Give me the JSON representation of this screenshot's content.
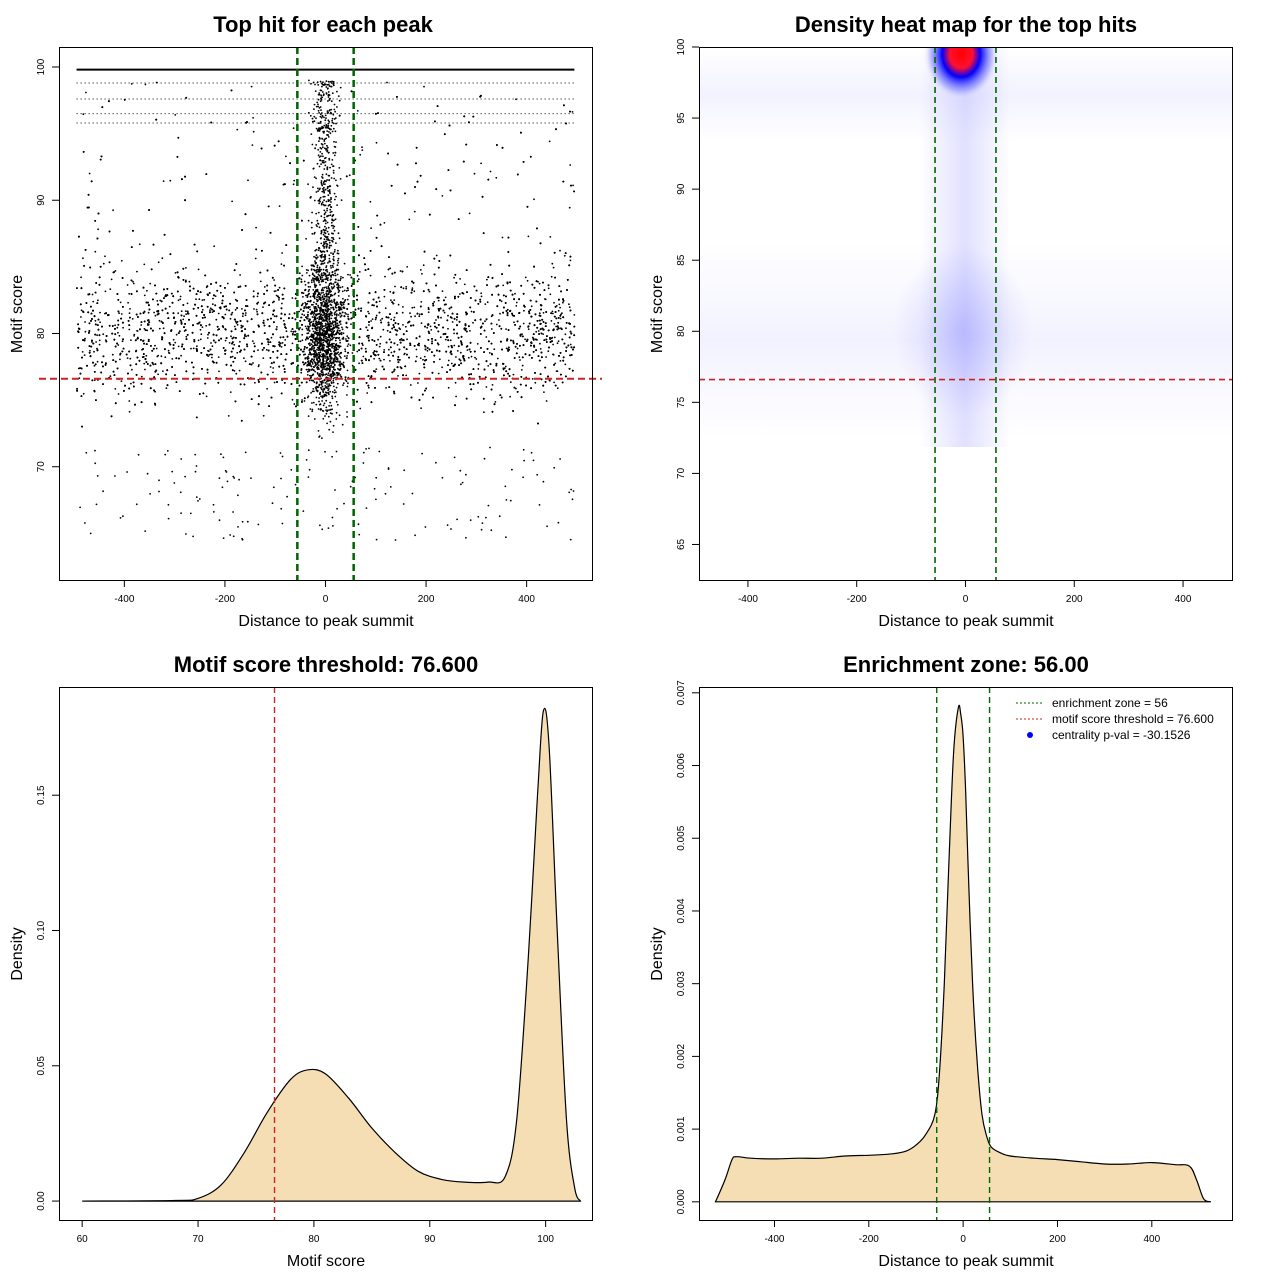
{
  "colors": {
    "axis": "#000000",
    "enrichment_line": "#006400",
    "threshold_line": "#cc2222",
    "density_fill": "#f5deb3",
    "heat_low": "#ffffff",
    "heat_mid": "#0000ff",
    "heat_high": "#ff0000",
    "pval_dot": "#0000ff"
  },
  "chart_data": [
    {
      "type": "scatter",
      "title": "Top hit for each peak",
      "xlabel": "Distance to peak summit",
      "ylabel": "Motif score",
      "xlim": [
        -530,
        530
      ],
      "ylim": [
        61.5,
        101.5
      ],
      "xticks": [
        -400,
        -200,
        0,
        200,
        400
      ],
      "yticks": [
        70,
        80,
        90,
        100
      ],
      "point_range_x": [
        -495,
        495
      ],
      "point_mode_y": 80,
      "central_peak_x": 0,
      "max_score_row_y": 99.8,
      "vlines": [
        -56,
        56
      ],
      "hline": 76.6
    },
    {
      "type": "heatmap",
      "title": "Density heat map for the top hits",
      "xlabel": "Distance to peak summit",
      "ylabel": "Motif score",
      "xlim": [
        -490,
        490
      ],
      "ylim": [
        62.5,
        100
      ],
      "xticks": [
        -400,
        -200,
        0,
        200,
        400
      ],
      "yticks": [
        65,
        70,
        75,
        80,
        85,
        90,
        95,
        100
      ],
      "hotspot": {
        "x": -8,
        "y": 99.5
      },
      "secondary_hotspot": {
        "x": -5,
        "y": 80
      },
      "vlines": [
        -56,
        56
      ],
      "hline": 76.6
    },
    {
      "type": "area",
      "title": "Motif score threshold: 76.600",
      "xlabel": "Motif score",
      "ylabel": "Density",
      "xlim": [
        58,
        104
      ],
      "ylim": [
        -0.007,
        0.19
      ],
      "xticks": [
        60,
        70,
        80,
        90,
        100
      ],
      "yticks": [
        0.0,
        0.05,
        0.1,
        0.15
      ],
      "ytick_labels": [
        "0.00",
        "0.05",
        "0.10",
        "0.15"
      ],
      "x": [
        60,
        68,
        70,
        72,
        74,
        76,
        78,
        79.5,
        81,
        83,
        85,
        87,
        89,
        91,
        93,
        95,
        96.5,
        97.5,
        98.5,
        99.3,
        99.8,
        100.3,
        101,
        101.8,
        102.5,
        103
      ],
      "y": [
        0.0,
        0.0002,
        0.001,
        0.006,
        0.018,
        0.033,
        0.045,
        0.0485,
        0.047,
        0.038,
        0.027,
        0.018,
        0.011,
        0.008,
        0.007,
        0.007,
        0.009,
        0.03,
        0.09,
        0.15,
        0.181,
        0.168,
        0.1,
        0.03,
        0.005,
        0.0
      ],
      "vline": 76.6
    },
    {
      "type": "area",
      "title": "Enrichment zone: 56.00",
      "xlabel": "Distance to peak summit",
      "ylabel": "Density",
      "xlim": [
        -560,
        570
      ],
      "ylim": [
        -0.00025,
        0.00708
      ],
      "xticks": [
        -400,
        -200,
        0,
        200,
        400
      ],
      "yticks": [
        0.0,
        0.001,
        0.002,
        0.003,
        0.004,
        0.005,
        0.006,
        0.007
      ],
      "ytick_labels": [
        "0.000",
        "0.001",
        "0.002",
        "0.003",
        "0.004",
        "0.005",
        "0.006",
        "0.007"
      ],
      "x": [
        -525,
        -505,
        -490,
        -480,
        -450,
        -400,
        -350,
        -300,
        -250,
        -200,
        -150,
        -120,
        -100,
        -80,
        -60,
        -50,
        -40,
        -30,
        -20,
        -10,
        -5,
        0,
        5,
        10,
        20,
        30,
        40,
        50,
        60,
        80,
        100,
        150,
        200,
        250,
        300,
        350,
        400,
        450,
        480,
        495,
        510,
        525
      ],
      "y": [
        0.0,
        0.0003,
        0.00058,
        0.00062,
        0.0006,
        0.00059,
        0.0006,
        0.0006,
        0.00063,
        0.00064,
        0.00066,
        0.0007,
        0.00078,
        0.00092,
        0.0012,
        0.0018,
        0.003,
        0.0047,
        0.0062,
        0.0068,
        0.0067,
        0.0064,
        0.0057,
        0.0047,
        0.003,
        0.0019,
        0.0012,
        0.0009,
        0.00075,
        0.00067,
        0.00063,
        0.0006,
        0.00058,
        0.00055,
        0.00052,
        0.00052,
        0.00054,
        0.00051,
        0.00049,
        0.0003,
        4e-05,
        0.0
      ],
      "vlines": [
        -56,
        56
      ],
      "legend": {
        "placement": "top-right",
        "entries": [
          {
            "label": "enrichment zone = 56",
            "style": "dotted",
            "color": "#006400"
          },
          {
            "label": "motif score threshold = 76.600",
            "style": "dotted",
            "color": "#cc2222"
          },
          {
            "label": "centrality p-val = -30.1526",
            "style": "dot",
            "color": "#0000ff"
          }
        ]
      }
    }
  ]
}
